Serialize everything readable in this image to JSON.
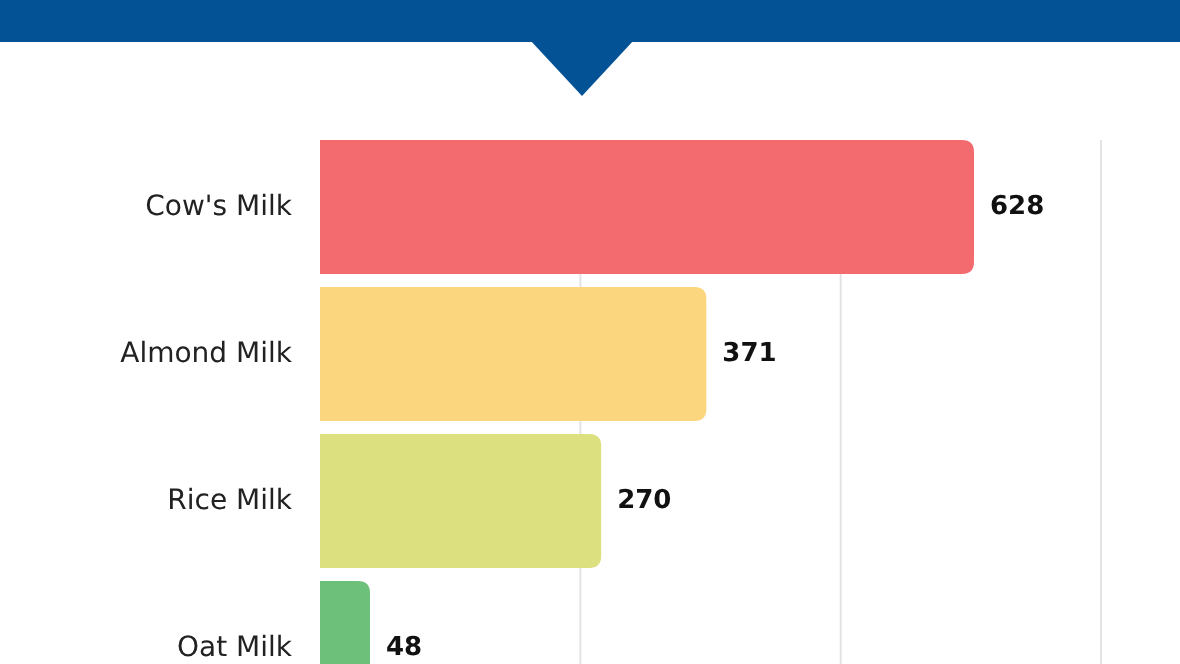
{
  "chart_data": {
    "type": "bar",
    "orientation": "horizontal",
    "categories": [
      "Cow's Milk",
      "Almond Milk",
      "Rice Milk",
      "Oat Milk"
    ],
    "values": [
      628,
      371,
      270,
      48
    ],
    "colors": [
      "#f36b6e",
      "#fbd67f",
      "#dde07f",
      "#6cc07a"
    ],
    "ref_lines": [
      {
        "axis": "x",
        "value": 250,
        "color": "#e3e3e3"
      },
      {
        "axis": "x",
        "value": 500,
        "color": "#e3e3e3"
      },
      {
        "axis": "x",
        "value": 750,
        "color": "#e3e3e3"
      }
    ],
    "data_labels": true
  }
}
